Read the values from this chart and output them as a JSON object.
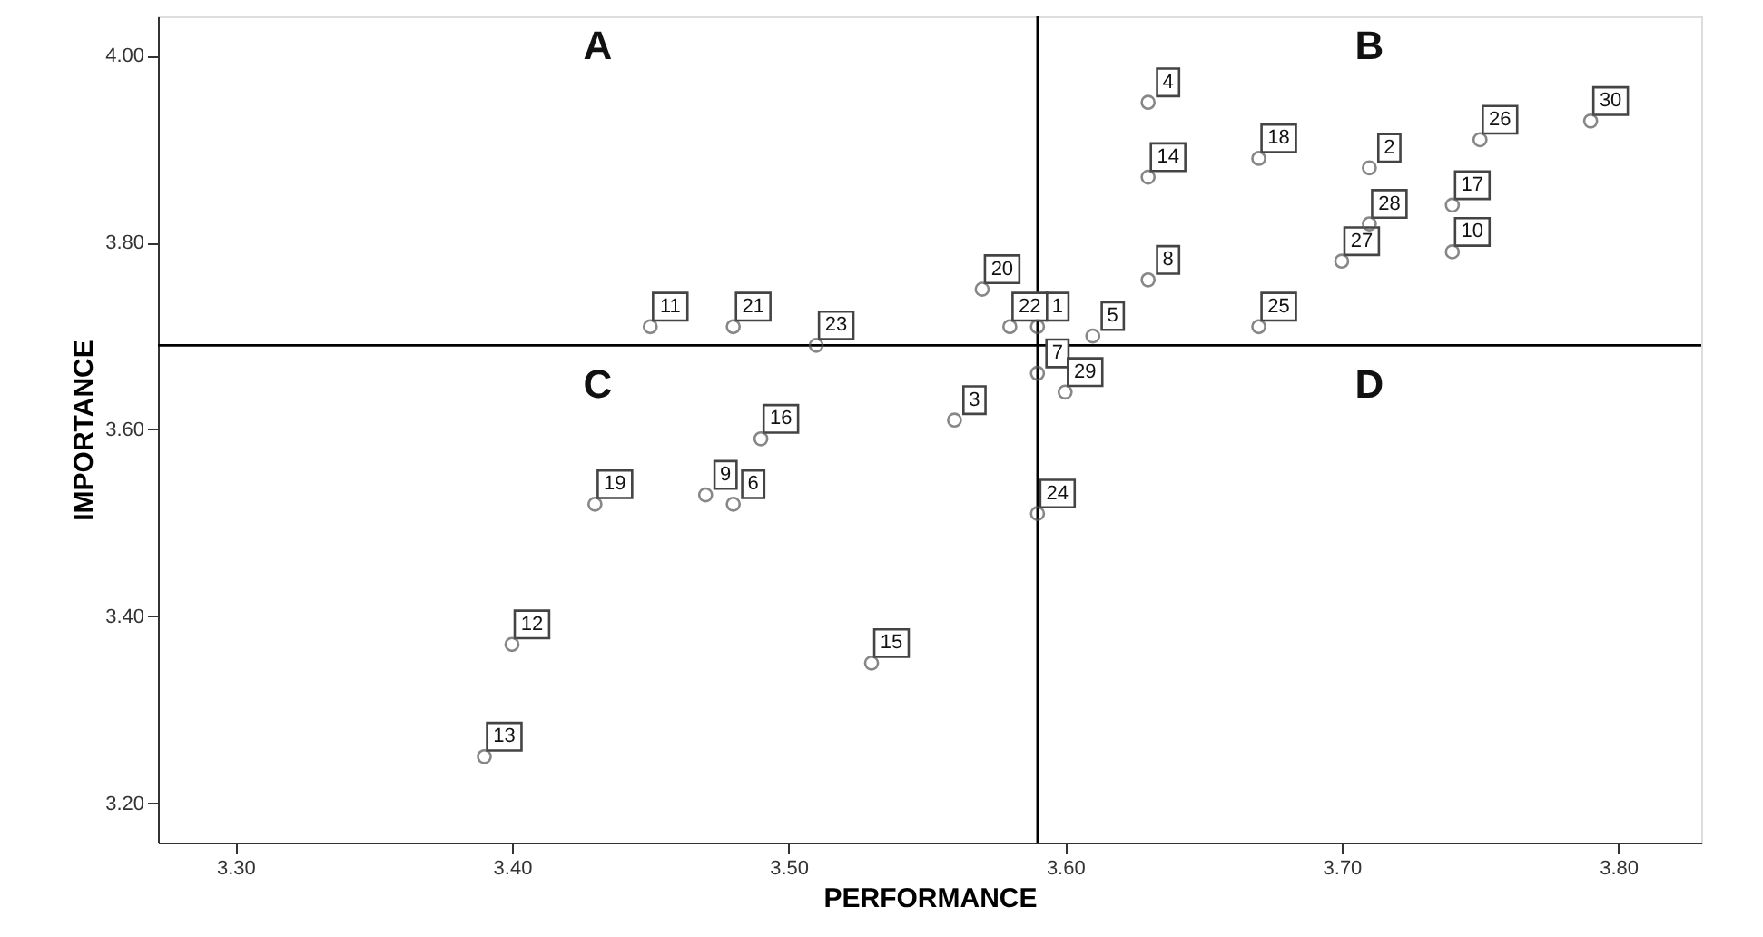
{
  "chart_data": {
    "type": "scatter",
    "xlabel": "PERFORMANCE",
    "ylabel": "IMPORTANCE",
    "xlim": [
      3.272,
      3.83
    ],
    "ylim": [
      3.158,
      4.042
    ],
    "xticks": [
      {
        "value": 3.3,
        "label": "3.30"
      },
      {
        "value": 3.4,
        "label": "3.40"
      },
      {
        "value": 3.5,
        "label": "3.50"
      },
      {
        "value": 3.6,
        "label": "3.60"
      },
      {
        "value": 3.7,
        "label": "3.70"
      },
      {
        "value": 3.8,
        "label": "3.80"
      }
    ],
    "yticks": [
      {
        "value": 3.2,
        "label": "3.20"
      },
      {
        "value": 3.4,
        "label": "3.40"
      },
      {
        "value": 3.6,
        "label": "3.60"
      },
      {
        "value": 3.8,
        "label": "3.80"
      },
      {
        "value": 4.0,
        "label": "4.00"
      }
    ],
    "grid": false,
    "marker": "circle",
    "series": [
      {
        "color": "#555555",
        "x": [
          3.59,
          3.71,
          3.56,
          3.63,
          3.61,
          3.48,
          3.59,
          3.63,
          3.47,
          3.74,
          3.45,
          3.4,
          3.39,
          3.63,
          3.53,
          3.49,
          3.74,
          3.67,
          3.43,
          3.57,
          3.48,
          3.58,
          3.51,
          3.59,
          3.67,
          3.75,
          3.7,
          3.71,
          3.6,
          3.79
        ],
        "values": [
          3.71,
          3.88,
          3.61,
          3.95,
          3.7,
          3.52,
          3.66,
          3.76,
          3.53,
          3.79,
          3.71,
          3.37,
          3.25,
          3.87,
          3.35,
          3.59,
          3.84,
          3.89,
          3.52,
          3.75,
          3.71,
          3.71,
          3.69,
          3.51,
          3.71,
          3.91,
          3.78,
          3.82,
          3.64,
          3.93
        ]
      }
    ],
    "ref_lines": [
      {
        "axis": "x",
        "value": 3.59,
        "color": "#000000"
      },
      {
        "axis": "y",
        "value": 3.69,
        "color": "#000000"
      }
    ],
    "annotations": [
      "A",
      "B",
      "C",
      "D",
      {
        "text": "1",
        "x": 3.59,
        "y": 3.71
      },
      {
        "text": "2",
        "x": 3.71,
        "y": 3.88
      },
      {
        "text": "3",
        "x": 3.56,
        "y": 3.61
      },
      {
        "text": "4",
        "x": 3.63,
        "y": 3.95
      },
      {
        "text": "5",
        "x": 3.61,
        "y": 3.7
      },
      {
        "text": "6",
        "x": 3.48,
        "y": 3.52
      },
      {
        "text": "7",
        "x": 3.59,
        "y": 3.66
      },
      {
        "text": "8",
        "x": 3.63,
        "y": 3.76
      },
      {
        "text": "9",
        "x": 3.47,
        "y": 3.53
      },
      {
        "text": "10",
        "x": 3.74,
        "y": 3.79
      },
      {
        "text": "11",
        "x": 3.45,
        "y": 3.71
      },
      {
        "text": "12",
        "x": 3.4,
        "y": 3.37
      },
      {
        "text": "13",
        "x": 3.39,
        "y": 3.25
      },
      {
        "text": "14",
        "x": 3.63,
        "y": 3.87
      },
      {
        "text": "15",
        "x": 3.53,
        "y": 3.35
      },
      {
        "text": "16",
        "x": 3.49,
        "y": 3.59
      },
      {
        "text": "17",
        "x": 3.74,
        "y": 3.84
      },
      {
        "text": "18",
        "x": 3.67,
        "y": 3.89
      },
      {
        "text": "19",
        "x": 3.43,
        "y": 3.52
      },
      {
        "text": "20",
        "x": 3.57,
        "y": 3.75
      },
      {
        "text": "21",
        "x": 3.48,
        "y": 3.71
      },
      {
        "text": "22",
        "x": 3.58,
        "y": 3.71
      },
      {
        "text": "23",
        "x": 3.51,
        "y": 3.69
      },
      {
        "text": "24",
        "x": 3.59,
        "y": 3.51
      },
      {
        "text": "25",
        "x": 3.67,
        "y": 3.71
      },
      {
        "text": "26",
        "x": 3.75,
        "y": 3.91
      },
      {
        "text": "27",
        "x": 3.7,
        "y": 3.78
      },
      {
        "text": "28",
        "x": 3.71,
        "y": 3.82
      },
      {
        "text": "29",
        "x": 3.6,
        "y": 3.64
      },
      {
        "text": "30",
        "x": 3.79,
        "y": 3.93
      }
    ]
  }
}
